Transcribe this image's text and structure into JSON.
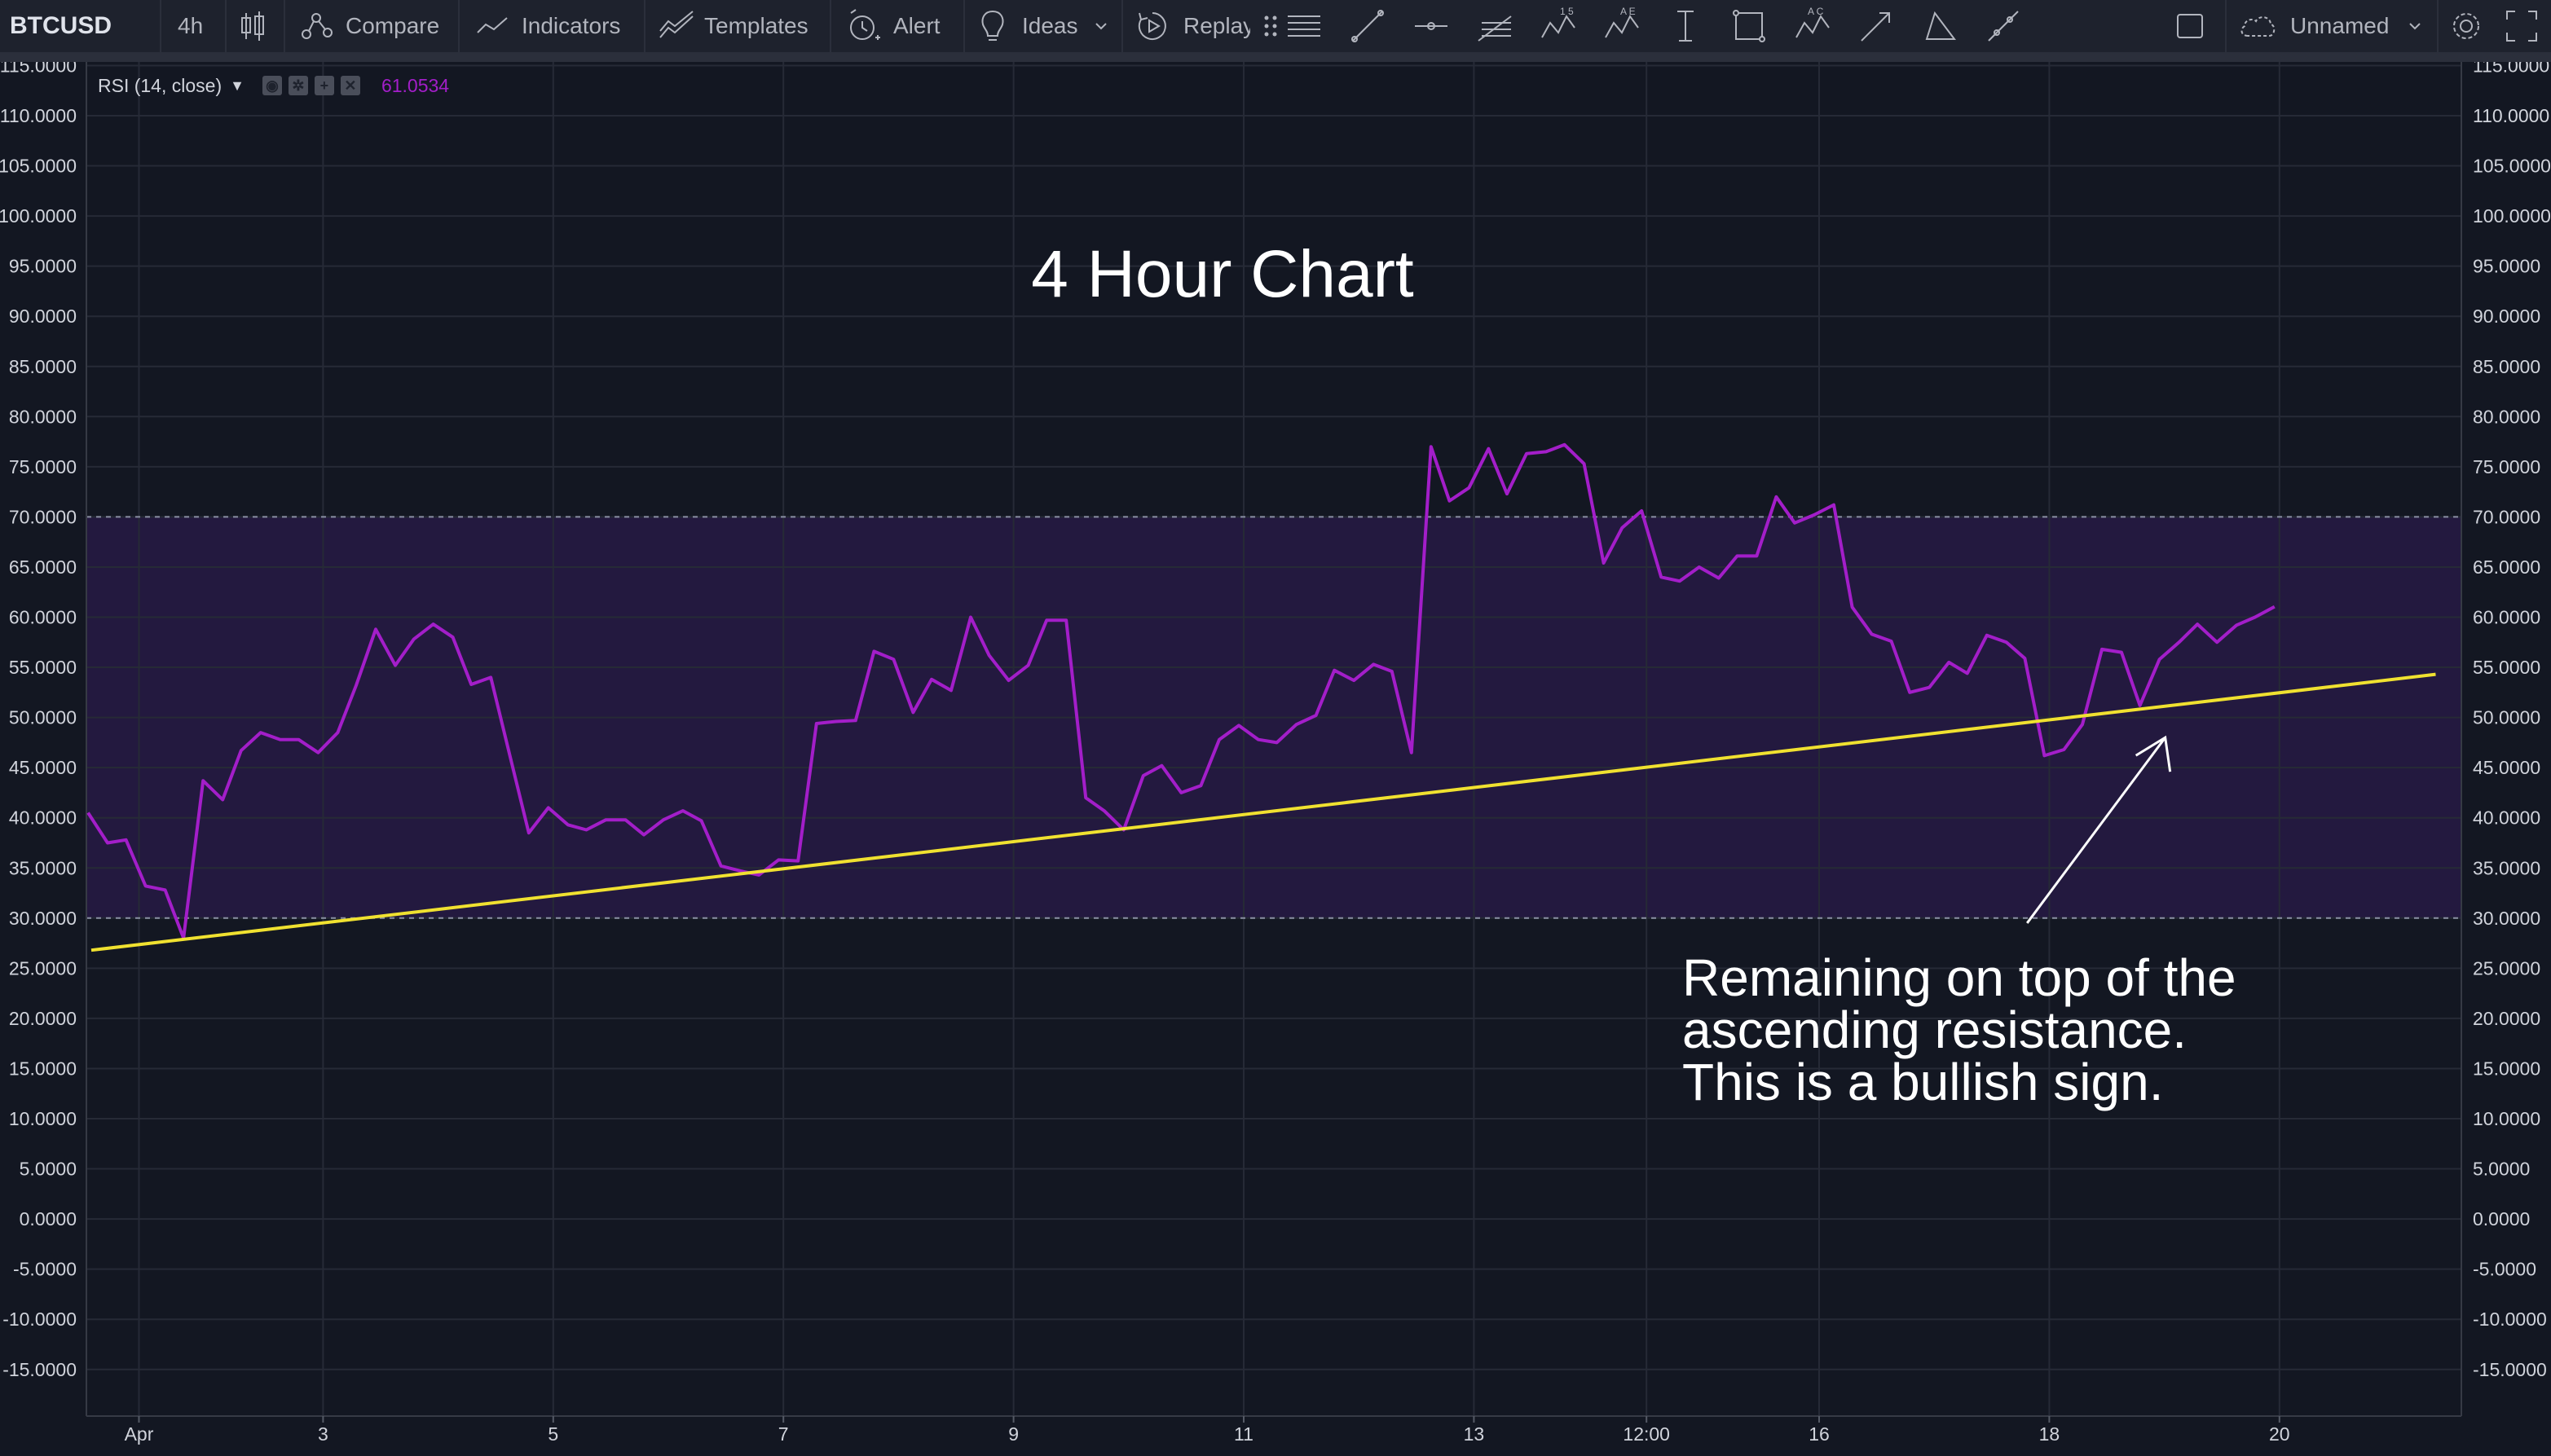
{
  "toolbar": {
    "symbol": "BTCUSD",
    "interval": "4h",
    "compare_label": "Compare",
    "indicators_label": "Indicators",
    "templates_label": "Templates",
    "alert_label": "Alert",
    "ideas_label": "Ideas",
    "replay_label": "Replay",
    "layout_name": "Unnamed"
  },
  "legend": {
    "indicator": "RSI (14, close)",
    "value": "61.0534"
  },
  "colors": {
    "background": "#131722",
    "rsi_line": "#a31ec9",
    "band_fill": "#2a1b4a",
    "trendline": "#f0e130",
    "text": "#d1d4dc"
  },
  "annotations": {
    "title": "4 Hour Chart",
    "note_lines": [
      "Remaining on top of the",
      "ascending resistance.",
      "This is a bullish sign."
    ]
  },
  "chart_data": {
    "type": "line",
    "x_tick_labels": [
      "Apr",
      "3",
      "5",
      "7",
      "9",
      "11",
      "13",
      "12:00",
      "16",
      "18",
      "20"
    ],
    "y_tick_labels": [
      "115.0000",
      "110.0000",
      "105.0000",
      "100.0000",
      "95.0000",
      "90.0000",
      "85.0000",
      "80.0000",
      "75.0000",
      "70.0000",
      "65.0000",
      "60.0000",
      "55.0000",
      "50.0000",
      "45.0000",
      "40.0000",
      "35.0000",
      "30.0000",
      "25.0000",
      "20.0000",
      "15.0000",
      "10.0000",
      "5.0000",
      "0.0000",
      "-5.0000",
      "-10.0000",
      "-15.0000"
    ],
    "ylim": [
      -19,
      116
    ],
    "xlim": [
      -0.15,
      20.4
    ],
    "overbought": 70,
    "oversold": 30,
    "grid": true,
    "series": [
      {
        "values": [
          [
            0,
            40.5
          ],
          [
            0.17,
            37.5
          ],
          [
            0.33,
            37.8
          ],
          [
            0.5,
            33.2
          ],
          [
            0.67,
            32.8
          ],
          [
            0.83,
            28
          ],
          [
            1.0,
            43.7
          ],
          [
            1.17,
            41.8
          ],
          [
            1.33,
            46.7
          ],
          [
            1.5,
            48.5
          ],
          [
            1.67,
            47.8
          ],
          [
            1.83,
            47.8
          ],
          [
            2.0,
            46.5
          ],
          [
            2.17,
            48.5
          ],
          [
            2.33,
            53.2
          ],
          [
            2.5,
            58.8
          ],
          [
            2.67,
            55.2
          ],
          [
            2.83,
            57.8
          ],
          [
            3.0,
            59.3
          ],
          [
            3.17,
            58
          ],
          [
            3.33,
            53.3
          ],
          [
            3.5,
            54
          ],
          [
            3.67,
            46
          ],
          [
            3.83,
            38.5
          ],
          [
            4.0,
            41
          ],
          [
            4.17,
            39.3
          ],
          [
            4.33,
            38.8
          ],
          [
            4.5,
            39.8
          ],
          [
            4.67,
            39.8
          ],
          [
            4.83,
            38.3
          ],
          [
            5.0,
            39.8
          ],
          [
            5.17,
            40.7
          ],
          [
            5.33,
            39.7
          ],
          [
            5.5,
            35.2
          ],
          [
            5.67,
            34.7
          ],
          [
            5.83,
            34.3
          ],
          [
            6.0,
            35.8
          ],
          [
            6.17,
            35.7
          ],
          [
            6.33,
            49.4
          ],
          [
            6.5,
            49.6
          ],
          [
            6.67,
            49.7
          ],
          [
            6.83,
            56.6
          ],
          [
            7.0,
            55.8
          ],
          [
            7.17,
            50.5
          ],
          [
            7.33,
            53.8
          ],
          [
            7.5,
            52.7
          ],
          [
            7.67,
            60
          ],
          [
            7.83,
            56.2
          ],
          [
            8.0,
            53.7
          ],
          [
            8.17,
            55.2
          ],
          [
            8.33,
            59.7
          ],
          [
            8.5,
            59.7
          ],
          [
            8.67,
            42
          ],
          [
            8.83,
            40.7
          ],
          [
            9.0,
            38.8
          ],
          [
            9.17,
            44.2
          ],
          [
            9.33,
            45.2
          ],
          [
            9.5,
            42.5
          ],
          [
            9.67,
            43.2
          ],
          [
            9.83,
            47.8
          ],
          [
            10.0,
            49.2
          ],
          [
            10.17,
            47.8
          ],
          [
            10.33,
            47.5
          ],
          [
            10.5,
            49.3
          ],
          [
            10.67,
            50.2
          ],
          [
            10.83,
            54.7
          ],
          [
            11.0,
            53.7
          ],
          [
            11.17,
            55.3
          ],
          [
            11.33,
            54.6
          ],
          [
            11.5,
            46.5
          ],
          [
            11.67,
            77
          ],
          [
            11.83,
            71.6
          ],
          [
            12.0,
            72.9
          ],
          [
            12.17,
            76.8
          ],
          [
            12.33,
            72.3
          ],
          [
            12.5,
            76.3
          ],
          [
            12.67,
            76.5
          ],
          [
            12.83,
            77.2
          ],
          [
            13.0,
            75.3
          ],
          [
            13.17,
            65.4
          ],
          [
            13.33,
            68.9
          ],
          [
            13.5,
            70.6
          ],
          [
            13.67,
            64
          ],
          [
            13.83,
            63.6
          ],
          [
            14.0,
            65
          ],
          [
            14.17,
            63.9
          ],
          [
            14.33,
            66.1
          ],
          [
            14.5,
            66.1
          ],
          [
            14.67,
            72
          ],
          [
            14.83,
            69.4
          ],
          [
            15.0,
            70.2
          ],
          [
            15.17,
            71.2
          ],
          [
            15.33,
            61
          ],
          [
            15.5,
            58.3
          ],
          [
            15.67,
            57.6
          ],
          [
            15.83,
            52.5
          ],
          [
            16.0,
            53
          ],
          [
            16.17,
            55.5
          ],
          [
            16.33,
            54.4
          ],
          [
            16.5,
            58.2
          ],
          [
            16.67,
            57.5
          ],
          [
            16.83,
            55.9
          ],
          [
            17.0,
            46.2
          ],
          [
            17.17,
            46.8
          ],
          [
            17.33,
            49.3
          ],
          [
            17.5,
            56.8
          ],
          [
            17.67,
            56.5
          ],
          [
            17.83,
            51.2
          ],
          [
            18.0,
            55.8
          ],
          [
            18.17,
            57.5
          ],
          [
            18.33,
            59.3
          ],
          [
            18.5,
            57.5
          ],
          [
            18.67,
            59.2
          ],
          [
            18.83,
            60
          ],
          [
            19.0,
            61.05
          ]
        ]
      }
    ],
    "trendline": {
      "from": [
        -0.1,
        26.8
      ],
      "to": [
        20.4,
        54.3
      ]
    },
    "arrow": {
      "from": [
        16.85,
        29.5
      ],
      "to": [
        18.05,
        48
      ]
    }
  }
}
